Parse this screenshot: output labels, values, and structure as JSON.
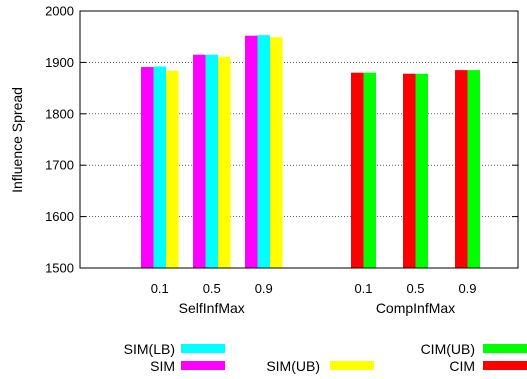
{
  "chart_data": {
    "type": "bar",
    "xlabel": "",
    "ylabel": "Influence Spread",
    "ylim": [
      1500,
      2000
    ],
    "yticks": [
      1500,
      1600,
      1700,
      1800,
      1900,
      2000
    ],
    "grid": true,
    "groups": [
      {
        "label": "SelfInfMax",
        "categories": [
          "0.1",
          "0.5",
          "0.9"
        ],
        "series": [
          {
            "name": "SIM",
            "color": "#ff00ff",
            "values": [
              1891,
              1915,
              1952
            ]
          },
          {
            "name": "SIM(LB)",
            "color": "#00ffff",
            "values": [
              1892,
              1915,
              1953
            ]
          },
          {
            "name": "SIM(UB)",
            "color": "#ffff00",
            "values": [
              1884,
              1911,
              1949
            ]
          }
        ]
      },
      {
        "label": "CompInfMax",
        "categories": [
          "0.1",
          "0.5",
          "0.9"
        ],
        "series": [
          {
            "name": "CIM",
            "color": "#ff0000",
            "values": [
              1880,
              1878,
              1885
            ]
          },
          {
            "name": "CIM(UB)",
            "color": "#00ff00",
            "values": [
              1880,
              1878,
              1885
            ]
          }
        ]
      }
    ],
    "legend": {
      "placement": "bottom",
      "entries": [
        {
          "name": "SIM(LB)",
          "color": "#00ffff"
        },
        {
          "name": "SIM",
          "color": "#ff00ff"
        },
        {
          "name": "SIM(UB)",
          "color": "#ffff00"
        },
        {
          "name": "CIM(UB)",
          "color": "#00ff00"
        },
        {
          "name": "CIM",
          "color": "#ff0000"
        }
      ]
    }
  }
}
